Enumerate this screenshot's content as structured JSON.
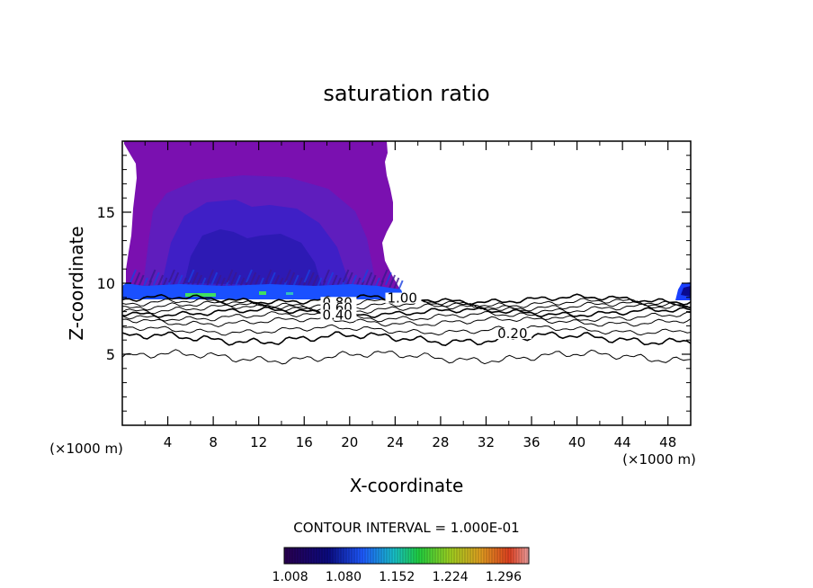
{
  "chart_data": {
    "type": "contour",
    "title": "saturation ratio",
    "xlabel": "X-coordinate",
    "ylabel": "Z-coordinate",
    "x_unit_label": "(×1000 m)",
    "z_unit_label": "(×1000 m)",
    "xlim": [
      0,
      50
    ],
    "ylim": [
      0,
      20
    ],
    "x_ticks": [
      4,
      8,
      12,
      16,
      20,
      24,
      28,
      32,
      36,
      40,
      44,
      48
    ],
    "y_ticks": [
      5,
      10,
      15
    ],
    "contour_interval_label": "CONTOUR INTERVAL = 1.000E-01",
    "contour_levels": [
      0.1,
      0.2,
      0.3,
      0.4,
      0.5,
      0.6,
      0.7,
      0.8,
      0.9,
      1.0
    ],
    "contour_labels": [
      {
        "text": "1.00",
        "x": 23.3,
        "z": 8.7
      },
      {
        "text": "0.80",
        "x": 17.6,
        "z": 8.4
      },
      {
        "text": "0.60",
        "x": 17.6,
        "z": 8.0
      },
      {
        "text": "0.40",
        "x": 17.6,
        "z": 7.5
      },
      {
        "text": "0.20",
        "x": 33.0,
        "z": 6.2
      }
    ],
    "colorbar_ticks": [
      "1.008",
      "1.080",
      "1.152",
      "1.224",
      "1.296"
    ],
    "colorbar_range": [
      1.0,
      1.33
    ],
    "supersaturated_regions": [
      {
        "x_range": [
          0.2,
          25.0
        ],
        "z_range": [
          8.9,
          20.0
        ]
      },
      {
        "x_range": [
          48.5,
          50.0
        ],
        "z_range": [
          8.9,
          10.0
        ]
      }
    ]
  }
}
